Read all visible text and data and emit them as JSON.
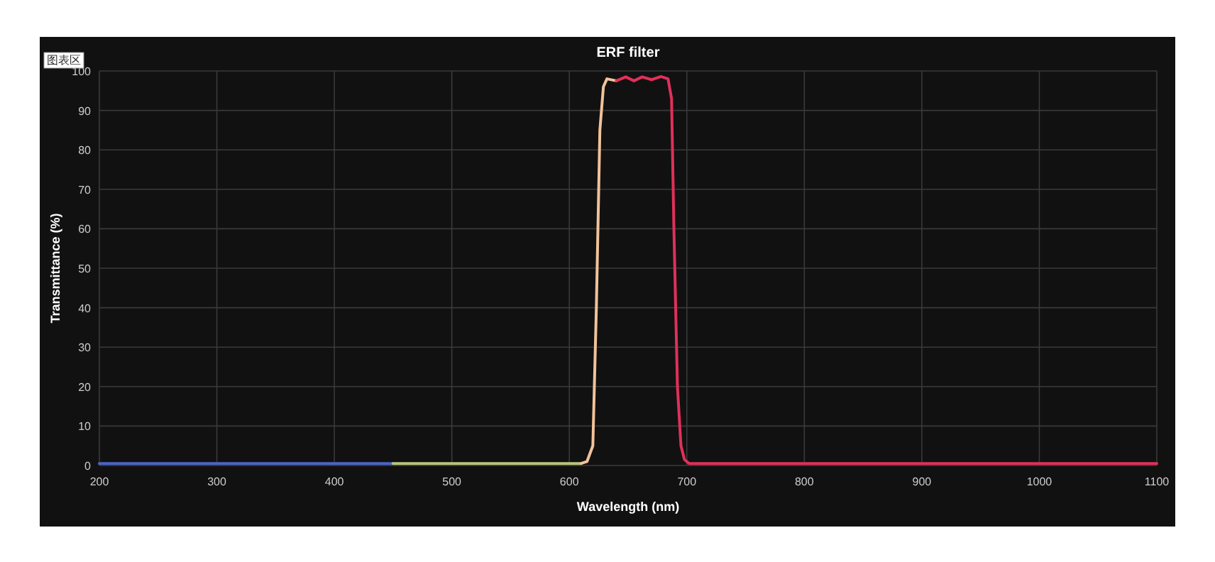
{
  "chart_data": {
    "type": "line",
    "title": "ERF filter",
    "xlabel": "Wavelength (nm)",
    "ylabel": "Transmittance (%)",
    "annotations": [
      "图表区"
    ],
    "xlim": [
      200,
      1100
    ],
    "xticks": [
      200,
      300,
      400,
      500,
      600,
      700,
      800,
      900,
      1000,
      1100
    ],
    "ylim": [
      0,
      100
    ],
    "yticks": [
      0,
      10,
      20,
      30,
      40,
      50,
      60,
      70,
      80,
      90,
      100
    ],
    "grid": true,
    "marker": "none",
    "line_style": "solid",
    "series": [
      {
        "color": "#4a66c8",
        "x": [
          200,
          300,
          400,
          450
        ],
        "values": [
          0.5,
          0.5,
          0.5,
          0.5
        ]
      },
      {
        "color": "#b9c47a",
        "x": [
          450,
          500,
          550,
          610
        ],
        "values": [
          0.5,
          0.5,
          0.5,
          0.5
        ]
      },
      {
        "color": "#f2c29a",
        "x": [
          610,
          615,
          620,
          623,
          626,
          629,
          632,
          640
        ],
        "values": [
          0.5,
          1,
          5,
          40,
          85,
          96,
          98,
          97.5
        ]
      },
      {
        "color": "#e0305a",
        "x": [
          640,
          648,
          655,
          662,
          670,
          678,
          684,
          687,
          689,
          692,
          695,
          698,
          702,
          800,
          900,
          1000,
          1100
        ],
        "values": [
          97.5,
          98.5,
          97.5,
          98.5,
          97.8,
          98.6,
          98,
          93,
          60,
          20,
          5,
          1.5,
          0.5,
          0.5,
          0.5,
          0.5,
          0.5
        ]
      }
    ]
  }
}
